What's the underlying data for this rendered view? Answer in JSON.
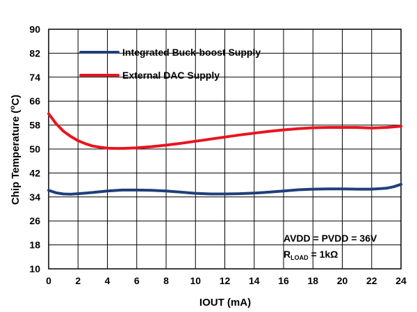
{
  "chart_data": {
    "type": "line",
    "title": "",
    "xlabel": "IOUT (mA)",
    "ylabel_main": "Chip Temperature (",
    "ylabel_sup": "o",
    "ylabel_end": "C)",
    "xlim": [
      0,
      24
    ],
    "ylim": [
      10,
      90
    ],
    "xticks": [
      "0",
      "2",
      "4",
      "6",
      "8",
      "10",
      "12",
      "14",
      "16",
      "18",
      "20",
      "22",
      "24"
    ],
    "yticks": [
      "10",
      "18",
      "26",
      "34",
      "42",
      "50",
      "58",
      "66",
      "74",
      "82",
      "90"
    ],
    "grid": true,
    "legend_position": "top-left",
    "series": [
      {
        "name": "Integrated Buck-boost Supply",
        "color": "#1f3f7a",
        "x": [
          0,
          0.5,
          1,
          1.5,
          2,
          3,
          4,
          5,
          6,
          7,
          8,
          9,
          10,
          11,
          12,
          13,
          14,
          15,
          16,
          17,
          18,
          19,
          20,
          21,
          22,
          23,
          23.5,
          24
        ],
        "y": [
          36.2,
          35.4,
          35.0,
          34.9,
          35.1,
          35.5,
          36.0,
          36.3,
          36.3,
          36.2,
          36.0,
          35.6,
          35.2,
          35.0,
          35.0,
          35.1,
          35.3,
          35.6,
          36.0,
          36.4,
          36.6,
          36.7,
          36.7,
          36.6,
          36.6,
          36.9,
          37.4,
          38.2
        ]
      },
      {
        "name": "External DAC Supply",
        "color": "#e8141e",
        "x": [
          0,
          0.5,
          1,
          1.5,
          2,
          2.5,
          3,
          3.5,
          4,
          4.5,
          5,
          5.5,
          6,
          7,
          8,
          9,
          10,
          11,
          12,
          13,
          14,
          15,
          16,
          17,
          18,
          19,
          20,
          21,
          22,
          23,
          24
        ],
        "y": [
          61.8,
          58.5,
          56.0,
          54.2,
          52.8,
          51.8,
          51.0,
          50.6,
          50.3,
          50.2,
          50.2,
          50.3,
          50.4,
          50.8,
          51.3,
          51.9,
          52.6,
          53.3,
          54.0,
          54.7,
          55.3,
          55.9,
          56.4,
          56.8,
          57.1,
          57.2,
          57.2,
          57.2,
          57.0,
          57.2,
          57.6
        ]
      }
    ],
    "annotation_line1": "AVDD = PVDD = 36V",
    "annotation_r": "R",
    "annotation_sub": "LOAD",
    "annotation_val": " = 1kΩ"
  }
}
